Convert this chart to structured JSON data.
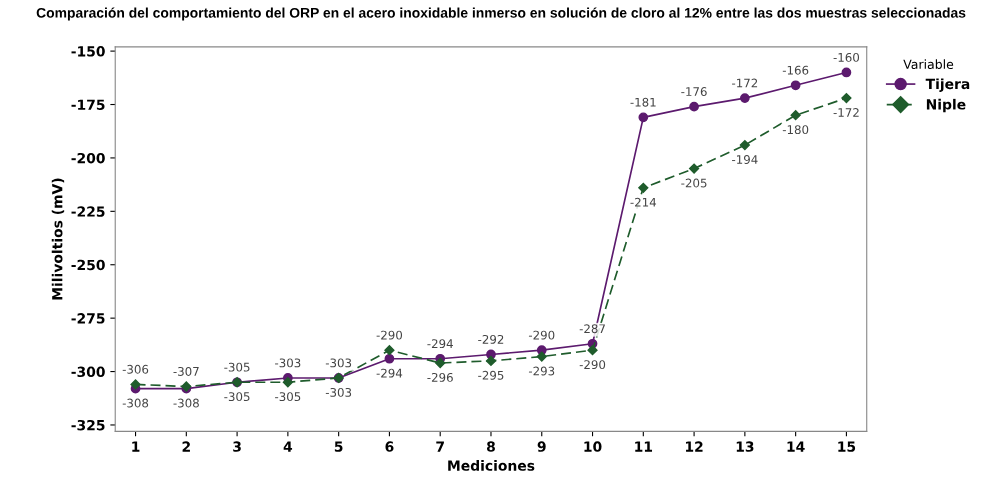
{
  "chart_data": {
    "type": "line",
    "title": "Comparación del comportamiento del ORP en el acero inoxidable inmerso en solución de cloro al 12% entre las dos muestras seleccionadas",
    "xlabel": "Mediciones",
    "ylabel": "Milivoltios (mV)",
    "legend_title": "Variable",
    "legend": "right",
    "grid": false,
    "data_labels": true,
    "categories": [
      "1",
      "2",
      "3",
      "4",
      "5",
      "6",
      "7",
      "8",
      "9",
      "10",
      "11",
      "12",
      "13",
      "14",
      "15"
    ],
    "ylim": [
      -328,
      -148
    ],
    "yticks": [
      -325,
      -300,
      -275,
      -250,
      -225,
      -200,
      -175,
      -150
    ],
    "series": [
      {
        "name": "Tijera",
        "color": "#5c1a6e",
        "marker": "circle",
        "line_style": "solid",
        "values": [
          -308,
          -308,
          -305,
          -303,
          -303,
          -294,
          -294,
          -292,
          -290,
          -287,
          -181,
          -176,
          -172,
          -166,
          -160
        ]
      },
      {
        "name": "Niple",
        "color": "#1f5c2c",
        "marker": "diamond",
        "line_style": "dashed",
        "values": [
          -306,
          -307,
          -305,
          -305,
          -303,
          -290,
          -296,
          -295,
          -293,
          -290,
          -214,
          -205,
          -194,
          -180,
          -172
        ]
      }
    ]
  }
}
